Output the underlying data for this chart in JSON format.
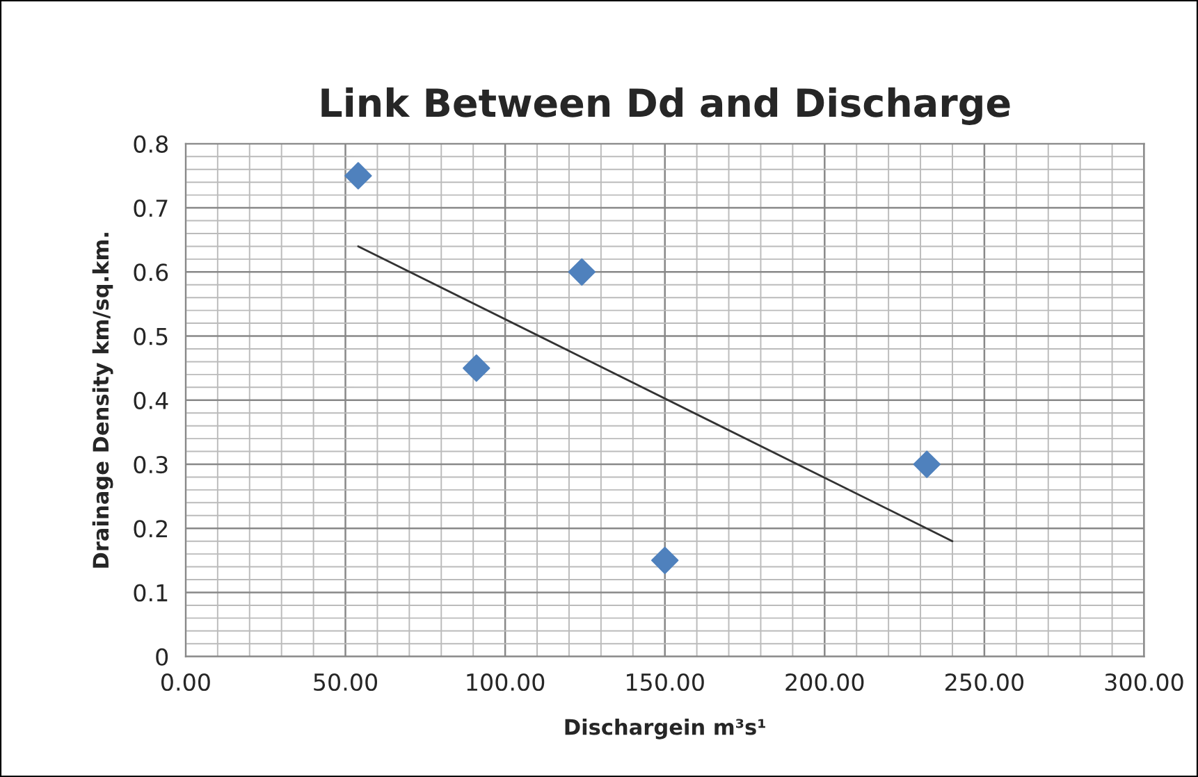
{
  "chart_data": {
    "type": "scatter",
    "title": "Link Between Dd and Discharge",
    "xlabel": "Dischargein m³s¹",
    "ylabel": "Drainage Density km/sq.km.",
    "series": [
      {
        "color": "#4f81bd",
        "marker": "diamond",
        "x": [
          54,
          91,
          124,
          150,
          232
        ],
        "values": [
          0.75,
          0.45,
          0.6,
          0.15,
          0.3
        ]
      },
      {
        "type": "line",
        "color": "#333333",
        "marker": "none",
        "line_style": "solid",
        "x": [
          54,
          240
        ],
        "values": [
          0.64,
          0.18
        ]
      }
    ],
    "xlim": [
      0,
      300
    ],
    "xticks": [
      {
        "value": 0,
        "label": "0.00"
      },
      {
        "value": 50,
        "label": "50.00"
      },
      {
        "value": 100,
        "label": "100.00"
      },
      {
        "value": 150,
        "label": "150.00"
      },
      {
        "value": 200,
        "label": "200.00"
      },
      {
        "value": 250,
        "label": "250.00"
      },
      {
        "value": 300,
        "label": "300.00"
      }
    ],
    "ylim": [
      0,
      0.8
    ],
    "yticks": [
      0,
      0.1,
      0.2,
      0.3,
      0.4,
      0.5,
      0.6,
      0.7,
      0.8
    ],
    "grid": true,
    "legend": false
  }
}
